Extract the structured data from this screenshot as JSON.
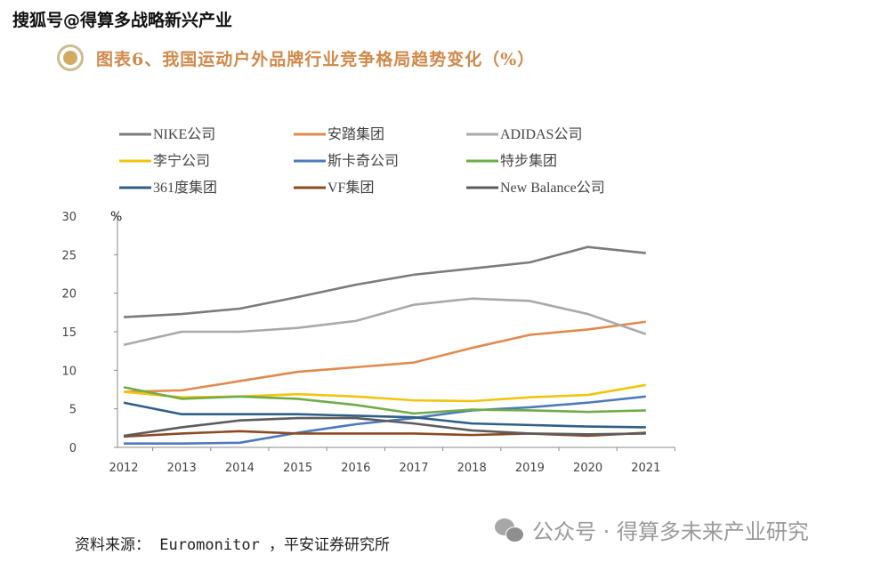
{
  "watermark_top": "搜狐号@得算多战略新兴产业",
  "figure_title": "图表6、我国运动户外品牌行业竞争格局趋势变化（%）",
  "source_note": "资料来源： Euromonitor ，平安证券研究所",
  "watermark_bottom": "公众号 · 得算多未来产业研究",
  "icons": {
    "title_bullet": "circle-bullet-icon",
    "wechat": "wechat-icon"
  },
  "chart_data": {
    "type": "line",
    "title": "我国运动户外品牌行业竞争格局趋势变化（%）",
    "xlabel": "",
    "ylabel": "%",
    "x": [
      "2012",
      "2013",
      "2014",
      "2015",
      "2016",
      "2017",
      "2018",
      "2019",
      "2020",
      "2021"
    ],
    "ylim": [
      0,
      30
    ],
    "yticks": [
      "0",
      "5",
      "10",
      "15",
      "20",
      "25",
      "30"
    ],
    "grid": false,
    "legend_position": "top",
    "series": [
      {
        "name": "NIKE公司",
        "color": "#7b7b7b",
        "values": [
          16.9,
          17.3,
          18.0,
          19.5,
          21.1,
          22.4,
          23.2,
          24.0,
          26.0,
          25.2
        ]
      },
      {
        "name": "安踏集团",
        "color": "#e08a4f",
        "values": [
          7.2,
          7.4,
          8.6,
          9.8,
          10.4,
          11.0,
          12.9,
          14.6,
          15.3,
          16.3
        ]
      },
      {
        "name": "ADIDAS公司",
        "color": "#a9a9a9",
        "values": [
          13.3,
          15.0,
          15.0,
          15.5,
          16.4,
          18.5,
          19.3,
          19.0,
          17.3,
          14.7
        ]
      },
      {
        "name": "李宁公司",
        "color": "#f2c40f",
        "values": [
          7.2,
          6.5,
          6.6,
          6.9,
          6.6,
          6.1,
          6.0,
          6.5,
          6.8,
          8.1
        ]
      },
      {
        "name": "斯卡奇公司",
        "color": "#4d79bd",
        "values": [
          0.5,
          0.5,
          0.6,
          1.9,
          3.0,
          3.8,
          4.8,
          5.2,
          5.8,
          6.6
        ]
      },
      {
        "name": "特步集团",
        "color": "#6fac46",
        "values": [
          7.8,
          6.3,
          6.6,
          6.3,
          5.5,
          4.4,
          4.9,
          4.8,
          4.6,
          4.8
        ]
      },
      {
        "name": "361度集团",
        "color": "#2f5f86",
        "values": [
          5.8,
          4.3,
          4.3,
          4.3,
          4.1,
          3.9,
          3.1,
          2.9,
          2.7,
          2.6
        ]
      },
      {
        "name": "VF集团",
        "color": "#8b4a22",
        "values": [
          1.4,
          1.8,
          2.1,
          1.8,
          1.8,
          1.8,
          1.6,
          1.8,
          1.5,
          1.9
        ]
      },
      {
        "name": "New Balance公司",
        "color": "#5c5c5c",
        "values": [
          1.5,
          2.6,
          3.5,
          3.8,
          3.8,
          3.1,
          2.2,
          1.8,
          1.7,
          1.8
        ]
      }
    ]
  }
}
